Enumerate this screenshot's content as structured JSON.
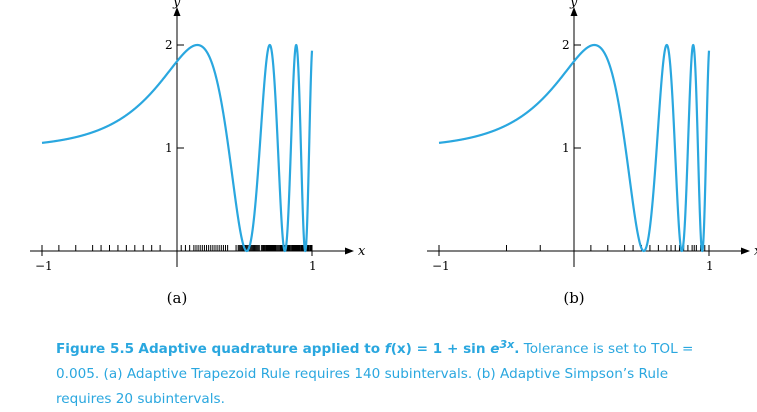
{
  "chart_data": [
    {
      "type": "line",
      "panel_label": "(a)",
      "function": "1 + sin(e^(3x))",
      "xlabel": "x",
      "ylabel": "y",
      "xlim": [
        -1,
        1
      ],
      "ylim": [
        0,
        2
      ],
      "x_tick_labels": [
        "−1",
        "1"
      ],
      "y_tick_labels": [
        "1",
        "2"
      ],
      "subinterval_count": 140,
      "subinterval_endpoints_note": "tick marks on x-axis show adaptive subdivision, dense near x>0.4"
    },
    {
      "type": "line",
      "panel_label": "(b)",
      "function": "1 + sin(e^(3x))",
      "xlabel": "x",
      "ylabel": "y",
      "xlim": [
        -1,
        1
      ],
      "ylim": [
        0,
        2
      ],
      "x_tick_labels": [
        "−1",
        "1"
      ],
      "y_tick_labels": [
        "1",
        "2"
      ],
      "subinterval_count": 20
    }
  ],
  "caption": {
    "figure_label": "Figure 5.5",
    "title_start": "Adaptive quadrature applied to ",
    "fx": "f",
    "paren_x": "(x)",
    "eq_start": " = 1 + sin ",
    "e_char": "e",
    "exponent": "3x",
    "period": ".",
    "body": " Tolerance is set to TOL = 0.005. (a) Adaptive Trapezoid Rule requires 140 subintervals. (b) Adaptive Simpson’s Rule requires 20 subintervals."
  },
  "colors": {
    "curve": "#2aa7df",
    "caption": "#2aa7df",
    "axes": "#000000"
  }
}
